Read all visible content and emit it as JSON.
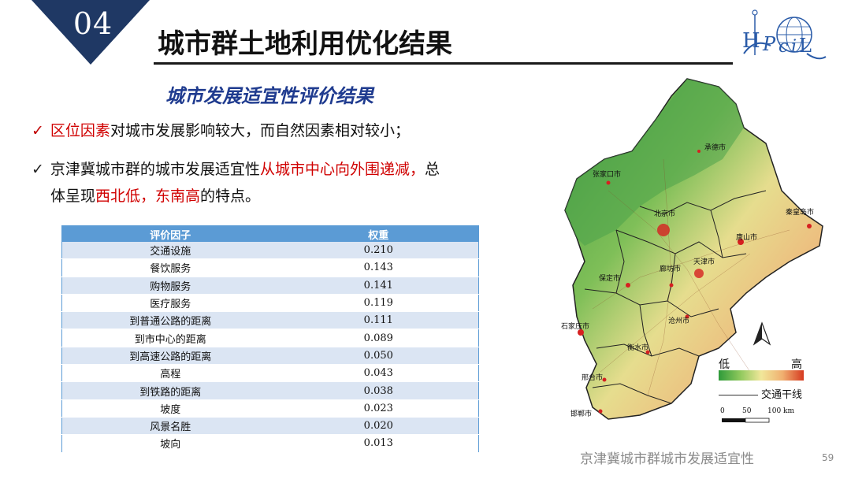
{
  "section_number": "04",
  "title": "城市群土地利用优化结果",
  "subtitle": "城市发展适宜性评价结果",
  "bullets": [
    {
      "mark": "✓",
      "pre": "",
      "red": "区位因素",
      "post": "对城市发展影响较大，而自然因素相对较小；"
    },
    {
      "mark": "✓",
      "line1_pre": "京津冀城市群的城市发展适宜性",
      "line1_red": "从城市中心向外围递减，",
      "line1_post": "总",
      "line2_pre": "体呈现",
      "line2_red": "西北低，东南高",
      "line2_post": "的特点。"
    }
  ],
  "table": {
    "headers": [
      "评价因子",
      "权重"
    ],
    "rows": [
      [
        "交通设施",
        "0.210"
      ],
      [
        "餐饮服务",
        "0.143"
      ],
      [
        "购物服务",
        "0.141"
      ],
      [
        "医疗服务",
        "0.119"
      ],
      [
        "到普通公路的距离",
        "0.111"
      ],
      [
        "到市中心的距离",
        "0.089"
      ],
      [
        "到高速公路的距离",
        "0.050"
      ],
      [
        "高程",
        "0.043"
      ],
      [
        "到铁路的距离",
        "0.038"
      ],
      [
        "坡度",
        "0.023"
      ],
      [
        "风景名胜",
        "0.020"
      ],
      [
        "坡向",
        "0.013"
      ]
    ]
  },
  "map": {
    "cities": [
      "承德市",
      "张家口市",
      "北京市",
      "秦皇岛市",
      "唐山市",
      "廊坊市",
      "天津市",
      "保定市",
      "沧州市",
      "石家庄市",
      "衡水市",
      "邢台市",
      "邯郸市"
    ],
    "legend_low": "低",
    "legend_high": "高",
    "legend_road": "交通干线",
    "scale_labels": [
      "0",
      "50",
      "100 km"
    ],
    "colors": {
      "low": "#2e9a3a",
      "mid": "#f1e79a",
      "high": "#d63a20"
    }
  },
  "footer": "京津冀城市群城市发展适宜性",
  "page_number": "59"
}
